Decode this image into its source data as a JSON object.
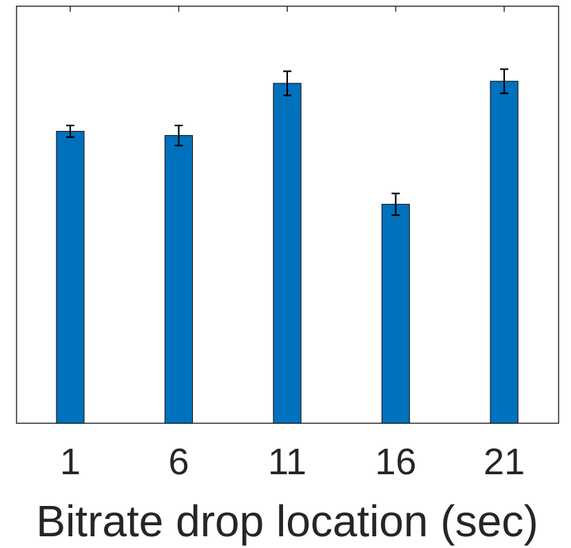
{
  "chart_data": {
    "type": "bar",
    "categories": [
      "1",
      "6",
      "11",
      "16",
      "21"
    ],
    "values": [
      0.7,
      0.69,
      0.815,
      0.525,
      0.82
    ],
    "errors": [
      0.014,
      0.024,
      0.029,
      0.026,
      0.029
    ],
    "xlabel": "Bitrate drop location (sec)",
    "ylabel": "",
    "ylim": [
      0,
      1
    ],
    "y_ticks_shown": false,
    "grid": false,
    "legend": "none",
    "bar_color": "#0072BD",
    "error_bar_color": "#000000",
    "axis_color": "#262626"
  }
}
